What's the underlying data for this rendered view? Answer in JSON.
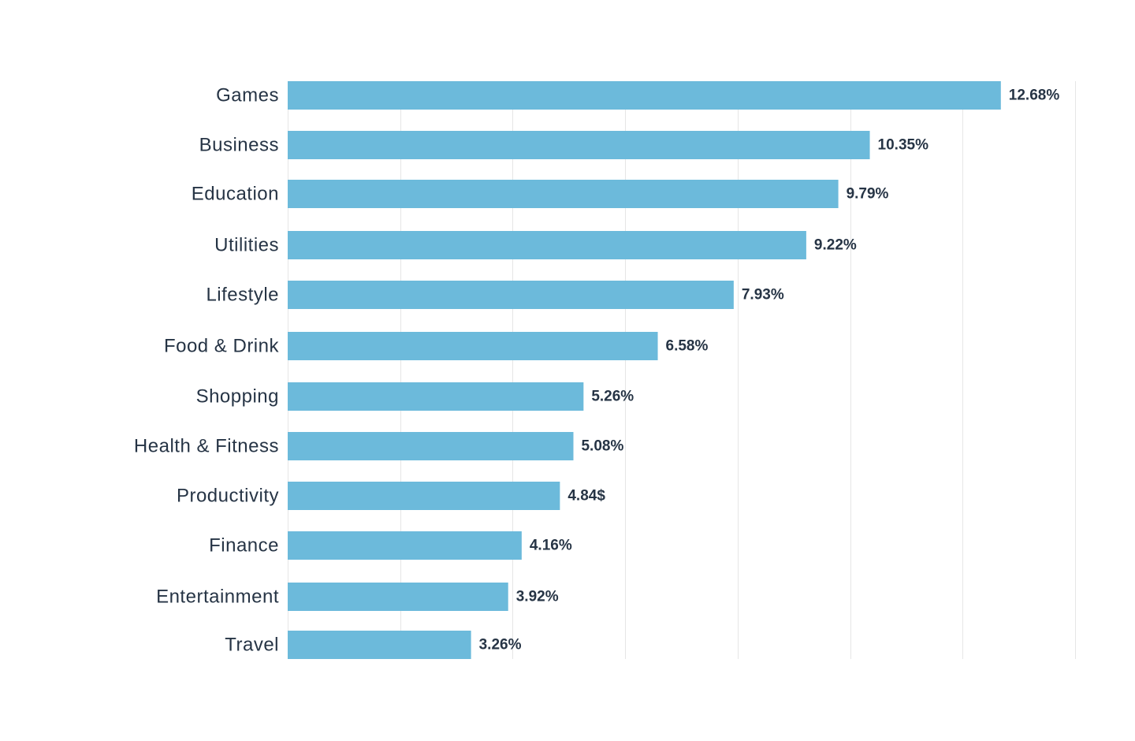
{
  "chart_data": {
    "type": "bar",
    "orientation": "horizontal",
    "categories": [
      "Games",
      "Business",
      "Education",
      "Utilities",
      "Lifestyle",
      "Food & Drink",
      "Shopping",
      "Health & Fitness",
      "Productivity",
      "Finance",
      "Entertainment",
      "Travel"
    ],
    "values": [
      12.68,
      10.35,
      9.79,
      9.22,
      7.93,
      6.58,
      5.26,
      5.08,
      4.84,
      4.16,
      3.92,
      3.26
    ],
    "value_labels": [
      "12.68%",
      "10.35%",
      "9.79%",
      "9.22%",
      "7.93%",
      "6.58%",
      "5.26%",
      "5.08%",
      "4.84$",
      "4.16%",
      "3.92%",
      "3.26%"
    ],
    "title": "",
    "xlabel": "",
    "ylabel": "",
    "xlim": [
      0,
      14
    ],
    "x_grid_step": 2,
    "grid": true,
    "bar_color": "#6cbadb",
    "text_color": "#263445",
    "grid_color": "#e6e6e6"
  }
}
